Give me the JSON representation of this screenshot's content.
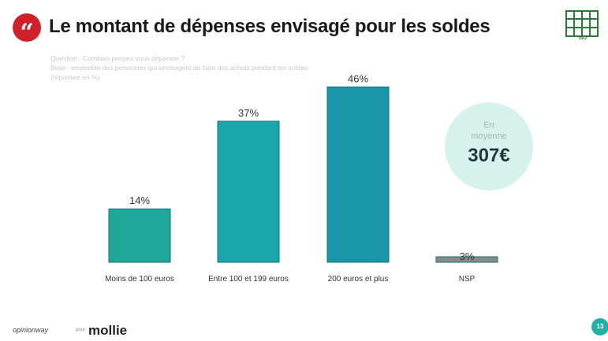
{
  "header": {
    "quote_glyph": "“",
    "title": "Le montant de dépenses envisagé pour les soldes"
  },
  "question": {
    "lines": [
      "Question : Combien pensez-vous dépenser ?",
      "Base : ensemble des personnes qui envisagent de faire des achats pendant les soldes",
      "(réponses en %)"
    ]
  },
  "average": {
    "label_line1": "En",
    "label_line2": "moyenne",
    "value": "307€",
    "color": "#d5f2ed"
  },
  "chart_data": {
    "type": "bar",
    "categories": [
      "Moins de 100 euros",
      "Entre 100 et 199 euros",
      "200 euros et plus",
      "NSP"
    ],
    "values": [
      14,
      37,
      46,
      3
    ],
    "value_labels": [
      "14%",
      "37%",
      "46%",
      "3%"
    ],
    "unit": "%",
    "ylim": [
      0,
      50
    ],
    "colors": [
      "#1fa89a",
      "#18a6aa",
      "#1b95a8",
      "#8a8a8a"
    ],
    "grid": false,
    "legend": "none"
  },
  "footer": {
    "brand": "opinionway",
    "with_label": "pour",
    "partner": "mollie",
    "page_number": "13",
    "accent": "#20b2a6"
  },
  "emblem": {
    "icon": "grid-emblem-icon",
    "caption": "ISO",
    "color": "#2a7a3a"
  }
}
